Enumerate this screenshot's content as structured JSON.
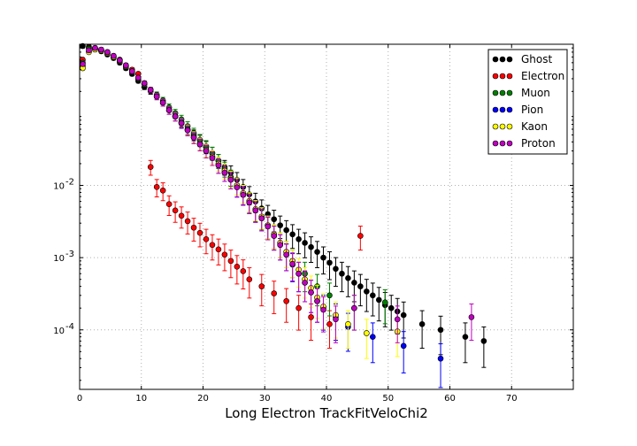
{
  "chart_data": {
    "type": "scatter",
    "title": "",
    "xlabel": "Long Electron TrackFitVeloChi2",
    "ylabel": "",
    "xlim": [
      0,
      80
    ],
    "ylim": [
      1.5e-05,
      0.9
    ],
    "yscale": "log",
    "grid": true,
    "legend_position": "top-right",
    "x_ticks": [
      "0",
      "10",
      "20",
      "30",
      "40",
      "50",
      "60",
      "70"
    ],
    "y_ticks": [
      {
        "base": "10",
        "exp": "-2",
        "value": 0.01
      },
      {
        "base": "10",
        "exp": "-3",
        "value": 0.001
      },
      {
        "base": "10",
        "exp": "-4",
        "value": 0.0001
      }
    ],
    "series": [
      {
        "name": "Ghost",
        "color": "#000000",
        "points": [
          [
            0.5,
            0.85
          ],
          [
            1.5,
            0.83
          ],
          [
            2.5,
            0.78
          ],
          [
            3.5,
            0.72
          ],
          [
            4.5,
            0.65
          ],
          [
            5.5,
            0.58
          ],
          [
            6.5,
            0.5
          ],
          [
            7.5,
            0.42
          ],
          [
            8.5,
            0.35
          ],
          [
            9.5,
            0.28
          ],
          [
            10.5,
            0.23
          ],
          [
            11.5,
            0.2
          ],
          [
            12.5,
            0.17
          ],
          [
            13.5,
            0.14
          ],
          [
            14.5,
            0.11
          ],
          [
            15.5,
            0.09
          ],
          [
            16.5,
            0.075
          ],
          [
            17.5,
            0.06
          ],
          [
            18.5,
            0.05
          ],
          [
            19.5,
            0.042
          ],
          [
            20.5,
            0.034
          ],
          [
            21.5,
            0.028
          ],
          [
            22.5,
            0.022
          ],
          [
            23.5,
            0.018
          ],
          [
            24.5,
            0.015
          ],
          [
            25.5,
            0.012
          ],
          [
            26.5,
            0.0095
          ],
          [
            27.5,
            0.0075
          ],
          [
            28.5,
            0.006
          ],
          [
            29.5,
            0.0048
          ],
          [
            30.5,
            0.004
          ],
          [
            31.5,
            0.0034
          ],
          [
            32.5,
            0.0028
          ],
          [
            33.5,
            0.0024
          ],
          [
            34.5,
            0.0021
          ],
          [
            35.5,
            0.0018
          ],
          [
            36.5,
            0.0016
          ],
          [
            37.5,
            0.0014
          ],
          [
            38.5,
            0.0012
          ],
          [
            39.5,
            0.001
          ],
          [
            40.5,
            0.00085
          ],
          [
            41.5,
            0.0007
          ],
          [
            42.5,
            0.0006
          ],
          [
            43.5,
            0.00052
          ],
          [
            44.5,
            0.00045
          ],
          [
            45.5,
            0.0004
          ],
          [
            46.5,
            0.00034
          ],
          [
            47.5,
            0.0003
          ],
          [
            48.5,
            0.00026
          ],
          [
            49.5,
            0.00022
          ],
          [
            50.5,
            0.0002
          ],
          [
            51.5,
            0.00018
          ],
          [
            52.5,
            0.00016
          ],
          [
            55.5,
            0.00012
          ],
          [
            58.5,
            0.0001
          ],
          [
            62.5,
            8e-05
          ],
          [
            65.5,
            7e-05
          ]
        ]
      },
      {
        "name": "Electron",
        "color": "#ff0000",
        "points": [
          [
            0.5,
            0.55
          ],
          [
            1.5,
            0.8
          ],
          [
            2.5,
            0.78
          ],
          [
            3.5,
            0.75
          ],
          [
            4.5,
            0.7
          ],
          [
            5.5,
            0.62
          ],
          [
            6.5,
            0.55
          ],
          [
            7.5,
            0.45
          ],
          [
            8.5,
            0.4
          ],
          [
            9.5,
            0.35
          ],
          [
            11.5,
            0.018
          ],
          [
            12.5,
            0.0095
          ],
          [
            13.5,
            0.0085
          ],
          [
            14.5,
            0.0055
          ],
          [
            15.5,
            0.0045
          ],
          [
            16.5,
            0.0038
          ],
          [
            17.5,
            0.0032
          ],
          [
            18.5,
            0.0026
          ],
          [
            19.5,
            0.0022
          ],
          [
            20.5,
            0.0018
          ],
          [
            21.5,
            0.0015
          ],
          [
            22.5,
            0.0013
          ],
          [
            23.5,
            0.0011
          ],
          [
            24.5,
            0.0009
          ],
          [
            25.5,
            0.00075
          ],
          [
            26.5,
            0.00065
          ],
          [
            27.5,
            0.0005
          ],
          [
            29.5,
            0.0004
          ],
          [
            31.5,
            0.00032
          ],
          [
            33.5,
            0.00025
          ],
          [
            35.5,
            0.0002
          ],
          [
            37.5,
            0.00015
          ],
          [
            40.5,
            0.00012
          ],
          [
            45.5,
            0.002
          ]
        ]
      },
      {
        "name": "Muon",
        "color": "#008000",
        "points": [
          [
            0.5,
            0.5
          ],
          [
            1.5,
            0.78
          ],
          [
            2.5,
            0.8
          ],
          [
            3.5,
            0.75
          ],
          [
            4.5,
            0.68
          ],
          [
            5.5,
            0.6
          ],
          [
            6.5,
            0.52
          ],
          [
            7.5,
            0.44
          ],
          [
            8.5,
            0.37
          ],
          [
            9.5,
            0.3
          ],
          [
            10.5,
            0.25
          ],
          [
            11.5,
            0.21
          ],
          [
            12.5,
            0.18
          ],
          [
            13.5,
            0.15
          ],
          [
            14.5,
            0.12
          ],
          [
            15.5,
            0.1
          ],
          [
            16.5,
            0.082
          ],
          [
            17.5,
            0.066
          ],
          [
            18.5,
            0.053
          ],
          [
            19.5,
            0.043
          ],
          [
            20.5,
            0.035
          ],
          [
            21.5,
            0.028
          ],
          [
            22.5,
            0.022
          ],
          [
            23.5,
            0.017
          ],
          [
            24.5,
            0.013
          ],
          [
            25.5,
            0.01
          ],
          [
            26.5,
            0.0078
          ],
          [
            27.5,
            0.006
          ],
          [
            28.5,
            0.0046
          ],
          [
            29.5,
            0.0036
          ],
          [
            30.5,
            0.0028
          ],
          [
            31.5,
            0.0021
          ],
          [
            32.5,
            0.0016
          ],
          [
            33.5,
            0.0012
          ],
          [
            34.5,
            0.0009
          ],
          [
            36.5,
            0.0006
          ],
          [
            38.5,
            0.0004
          ],
          [
            40.5,
            0.0003
          ],
          [
            44.5,
            0.0002
          ],
          [
            49.5,
            0.00024
          ]
        ]
      },
      {
        "name": "Pion",
        "color": "#0000ff",
        "points": [
          [
            0.5,
            0.45
          ],
          [
            1.5,
            0.72
          ],
          [
            2.5,
            0.78
          ],
          [
            3.5,
            0.75
          ],
          [
            4.5,
            0.7
          ],
          [
            5.5,
            0.62
          ],
          [
            6.5,
            0.54
          ],
          [
            7.5,
            0.46
          ],
          [
            8.5,
            0.38
          ],
          [
            9.5,
            0.31
          ],
          [
            10.5,
            0.26
          ],
          [
            11.5,
            0.21
          ],
          [
            12.5,
            0.17
          ],
          [
            13.5,
            0.14
          ],
          [
            14.5,
            0.11
          ],
          [
            15.5,
            0.09
          ],
          [
            16.5,
            0.072
          ],
          [
            17.5,
            0.058
          ],
          [
            18.5,
            0.046
          ],
          [
            19.5,
            0.037
          ],
          [
            20.5,
            0.03
          ],
          [
            21.5,
            0.024
          ],
          [
            22.5,
            0.019
          ],
          [
            23.5,
            0.015
          ],
          [
            24.5,
            0.012
          ],
          [
            25.5,
            0.0095
          ],
          [
            26.5,
            0.0075
          ],
          [
            27.5,
            0.0058
          ],
          [
            28.5,
            0.0045
          ],
          [
            29.5,
            0.0035
          ],
          [
            30.5,
            0.0027
          ],
          [
            31.5,
            0.002
          ],
          [
            32.5,
            0.0015
          ],
          [
            33.5,
            0.0011
          ],
          [
            34.5,
            0.0008
          ],
          [
            35.5,
            0.0006
          ],
          [
            36.5,
            0.00045
          ],
          [
            37.5,
            0.00033
          ],
          [
            38.5,
            0.00025
          ],
          [
            39.5,
            0.0002
          ],
          [
            41.5,
            0.00015
          ],
          [
            43.5,
            0.00011
          ],
          [
            47.5,
            8e-05
          ],
          [
            52.5,
            6e-05
          ],
          [
            58.5,
            4e-05
          ]
        ]
      },
      {
        "name": "Kaon",
        "color": "#ffff00",
        "points": [
          [
            0.5,
            0.42
          ],
          [
            1.5,
            0.7
          ],
          [
            2.5,
            0.76
          ],
          [
            3.5,
            0.74
          ],
          [
            4.5,
            0.68
          ],
          [
            5.5,
            0.6
          ],
          [
            6.5,
            0.53
          ],
          [
            7.5,
            0.45
          ],
          [
            8.5,
            0.38
          ],
          [
            9.5,
            0.31
          ],
          [
            10.5,
            0.26
          ],
          [
            11.5,
            0.21
          ],
          [
            12.5,
            0.17
          ],
          [
            13.5,
            0.14
          ],
          [
            14.5,
            0.11
          ],
          [
            15.5,
            0.09
          ],
          [
            16.5,
            0.073
          ],
          [
            17.5,
            0.059
          ],
          [
            18.5,
            0.047
          ],
          [
            19.5,
            0.038
          ],
          [
            20.5,
            0.031
          ],
          [
            21.5,
            0.025
          ],
          [
            22.5,
            0.02
          ],
          [
            23.5,
            0.016
          ],
          [
            24.5,
            0.0125
          ],
          [
            25.5,
            0.01
          ],
          [
            26.5,
            0.0078
          ],
          [
            27.5,
            0.0061
          ],
          [
            28.5,
            0.0047
          ],
          [
            29.5,
            0.0037
          ],
          [
            30.5,
            0.0028
          ],
          [
            31.5,
            0.0021
          ],
          [
            32.5,
            0.0016
          ],
          [
            33.5,
            0.0012
          ],
          [
            34.5,
            0.0009
          ],
          [
            35.5,
            0.00068
          ],
          [
            36.5,
            0.0005
          ],
          [
            37.5,
            0.00038
          ],
          [
            38.5,
            0.00028
          ],
          [
            39.5,
            0.00021
          ],
          [
            41.5,
            0.00016
          ],
          [
            43.5,
            0.00012
          ],
          [
            46.5,
            9e-05
          ],
          [
            51.5,
            9.5e-05
          ]
        ]
      },
      {
        "name": "Proton",
        "color": "#bf00bf",
        "points": [
          [
            0.5,
            0.48
          ],
          [
            1.5,
            0.74
          ],
          [
            2.5,
            0.8
          ],
          [
            3.5,
            0.76
          ],
          [
            4.5,
            0.7
          ],
          [
            5.5,
            0.62
          ],
          [
            6.5,
            0.54
          ],
          [
            7.5,
            0.46
          ],
          [
            8.5,
            0.38
          ],
          [
            9.5,
            0.31
          ],
          [
            10.5,
            0.26
          ],
          [
            11.5,
            0.21
          ],
          [
            12.5,
            0.17
          ],
          [
            13.5,
            0.14
          ],
          [
            14.5,
            0.11
          ],
          [
            15.5,
            0.09
          ],
          [
            16.5,
            0.073
          ],
          [
            17.5,
            0.058
          ],
          [
            18.5,
            0.046
          ],
          [
            19.5,
            0.037
          ],
          [
            20.5,
            0.03
          ],
          [
            21.5,
            0.024
          ],
          [
            22.5,
            0.019
          ],
          [
            23.5,
            0.015
          ],
          [
            24.5,
            0.012
          ],
          [
            25.5,
            0.0094
          ],
          [
            26.5,
            0.0074
          ],
          [
            27.5,
            0.0058
          ],
          [
            28.5,
            0.0045
          ],
          [
            29.5,
            0.0035
          ],
          [
            30.5,
            0.0027
          ],
          [
            31.5,
            0.002
          ],
          [
            32.5,
            0.0015
          ],
          [
            33.5,
            0.0011
          ],
          [
            34.5,
            0.00082
          ],
          [
            35.5,
            0.0006
          ],
          [
            36.5,
            0.00045
          ],
          [
            37.5,
            0.00033
          ],
          [
            38.5,
            0.00025
          ],
          [
            39.5,
            0.00019
          ],
          [
            41.5,
            0.00014
          ],
          [
            44.5,
            0.0002
          ],
          [
            51.5,
            0.00014
          ],
          [
            63.5,
            0.00015
          ]
        ]
      }
    ]
  }
}
